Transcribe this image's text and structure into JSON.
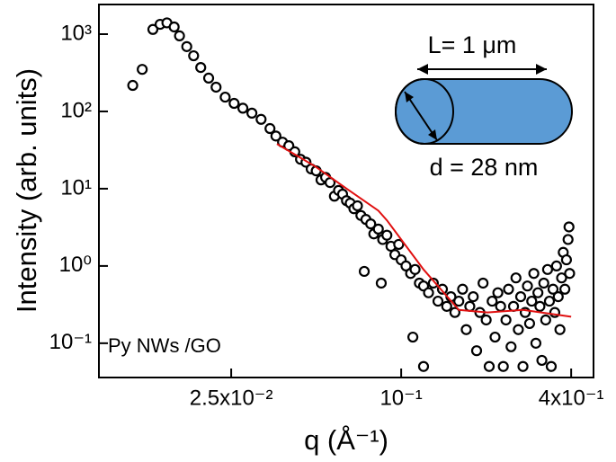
{
  "chart_data": {
    "type": "scatter",
    "xlabel": "q (Å⁻¹)",
    "ylabel": "Intensity (arb. units)",
    "annotation": "Py NWs /GO",
    "inset": {
      "length_label": "L= 1 μm",
      "diameter_label": "d = 28 nm",
      "color": "#5b9bd5"
    },
    "xscale": "log",
    "yscale": "log",
    "xlim": [
      0.0085,
      0.48
    ],
    "ylim": [
      0.036,
      2420
    ],
    "xticks": [
      {
        "value": 0.025,
        "label": "2.5x10⁻²"
      },
      {
        "value": 0.1,
        "label": "10⁻¹"
      },
      {
        "value": 0.4,
        "label": "4x10⁻¹"
      }
    ],
    "yticks": [
      {
        "value": 0.1,
        "label": "10⁻¹"
      },
      {
        "value": 1,
        "label": "10⁰"
      },
      {
        "value": 10,
        "label": "10¹"
      },
      {
        "value": 100,
        "label": "10²"
      },
      {
        "value": 1000,
        "label": "10³"
      }
    ],
    "marker_color": "#000000",
    "x": [
      0.0112,
      0.0121,
      0.0132,
      0.014,
      0.0148,
      0.0157,
      0.0164,
      0.0174,
      0.0184,
      0.0195,
      0.0208,
      0.0221,
      0.0238,
      0.0256,
      0.0275,
      0.0296,
      0.0319,
      0.0343,
      0.036,
      0.038,
      0.04,
      0.042,
      0.044,
      0.046,
      0.048,
      0.05,
      0.052,
      0.054,
      0.056,
      0.058,
      0.06,
      0.062,
      0.064,
      0.066,
      0.068,
      0.07,
      0.072,
      0.074,
      0.075,
      0.078,
      0.08,
      0.083,
      0.085,
      0.086,
      0.089,
      0.092,
      0.095,
      0.098,
      0.1,
      0.104,
      0.108,
      0.11,
      0.112,
      0.116,
      0.12,
      0.12,
      0.125,
      0.13,
      0.135,
      0.14,
      0.145,
      0.15,
      0.155,
      0.16,
      0.165,
      0.17,
      0.175,
      0.18,
      0.185,
      0.19,
      0.195,
      0.2,
      0.205,
      0.21,
      0.215,
      0.22,
      0.225,
      0.23,
      0.235,
      0.24,
      0.245,
      0.25,
      0.255,
      0.26,
      0.265,
      0.27,
      0.275,
      0.28,
      0.285,
      0.29,
      0.295,
      0.3,
      0.305,
      0.31,
      0.315,
      0.32,
      0.325,
      0.33,
      0.335,
      0.34,
      0.345,
      0.35,
      0.355,
      0.36,
      0.365,
      0.37,
      0.375,
      0.38,
      0.385,
      0.39,
      0.393,
      0.395
    ],
    "values": [
      217,
      350,
      1150,
      1340,
      1400,
      1240,
      950,
      690,
      525,
      370,
      270,
      206,
      153,
      127,
      110,
      95,
      79,
      60,
      48,
      40,
      36,
      30,
      24,
      22,
      18,
      17,
      13,
      14,
      12,
      8,
      9.5,
      8.5,
      7,
      6.5,
      5.5,
      6,
      4.5,
      0.85,
      4,
      3.5,
      2.6,
      3,
      0.6,
      2.2,
      2.5,
      1.8,
      1.4,
      1.9,
      1.2,
      1,
      0.8,
      0.12,
      0.9,
      0.6,
      0.55,
      0.05,
      0.45,
      0.6,
      0.35,
      0.5,
      0.3,
      0.4,
      0.25,
      0.35,
      0.5,
      0.15,
      0.3,
      0.4,
      0.08,
      0.25,
      0.6,
      0.2,
      0.05,
      0.35,
      0.12,
      0.45,
      0.3,
      0.05,
      0.2,
      0.5,
      0.09,
      0.3,
      0.7,
      0.15,
      0.4,
      0.05,
      0.25,
      0.55,
      0.18,
      0.35,
      0.8,
      0.1,
      0.45,
      0.3,
      0.06,
      0.6,
      0.2,
      0.9,
      0.35,
      0.05,
      0.5,
      0.25,
      1,
      0.4,
      0.15,
      0.7,
      1.5,
      0.5,
      1.2,
      2.2,
      3.2,
      0.8
    ],
    "fit": {
      "color": "#e01010",
      "x": [
        0.0363,
        0.0495,
        0.0641,
        0.083,
        0.089,
        0.12,
        0.16,
        0.202,
        0.27,
        0.4
      ],
      "values": [
        38,
        19.5,
        10,
        5.2,
        3.9,
        0.9,
        0.27,
        0.25,
        0.27,
        0.22
      ]
    }
  }
}
